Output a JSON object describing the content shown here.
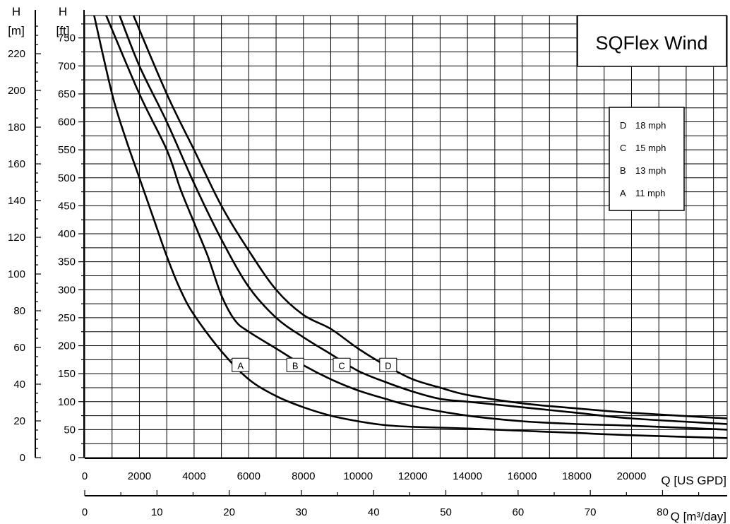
{
  "chart_data": {
    "type": "line",
    "title": "SQFlex Wind",
    "x_unit_label": "Q [US GPD]",
    "x2_unit_label": "Q [m³/day]",
    "y_left_label": {
      "line1": "H",
      "line2": "[m]"
    },
    "y_right_label": {
      "line1": "H",
      "line2": "[ft]"
    },
    "xlim": [
      0,
      23500
    ],
    "ylim": [
      0,
      790
    ],
    "x_ticks": [
      {
        "value": 0,
        "label": "0"
      },
      {
        "value": 2000,
        "label": "2000"
      },
      {
        "value": 4000,
        "label": "4000"
      },
      {
        "value": 6000,
        "label": "6000"
      },
      {
        "value": 8000,
        "label": "8000"
      },
      {
        "value": 10000,
        "label": "10000"
      },
      {
        "value": 12000,
        "label": "12000"
      },
      {
        "value": 14000,
        "label": "14000"
      },
      {
        "value": 16000,
        "label": "16000"
      },
      {
        "value": 18000,
        "label": "18000"
      },
      {
        "value": 20000,
        "label": "20000"
      }
    ],
    "x2_ticks": [
      {
        "value": 0,
        "label": "0"
      },
      {
        "value": 10,
        "label": "10"
      },
      {
        "value": 20,
        "label": "20"
      },
      {
        "value": 30,
        "label": "30"
      },
      {
        "value": 40,
        "label": "40"
      },
      {
        "value": 50,
        "label": "50"
      },
      {
        "value": 60,
        "label": "60"
      },
      {
        "value": 70,
        "label": "70"
      },
      {
        "value": 80,
        "label": "80"
      }
    ],
    "y_ft_ticks": [
      {
        "value": 0,
        "label": "0"
      },
      {
        "value": 50,
        "label": "50"
      },
      {
        "value": 100,
        "label": "100"
      },
      {
        "value": 150,
        "label": "150"
      },
      {
        "value": 200,
        "label": "200"
      },
      {
        "value": 250,
        "label": "250"
      },
      {
        "value": 300,
        "label": "300"
      },
      {
        "value": 350,
        "label": "350"
      },
      {
        "value": 400,
        "label": "400"
      },
      {
        "value": 450,
        "label": "450"
      },
      {
        "value": 500,
        "label": "500"
      },
      {
        "value": 550,
        "label": "550"
      },
      {
        "value": 600,
        "label": "600"
      },
      {
        "value": 650,
        "label": "650"
      },
      {
        "value": 700,
        "label": "700"
      },
      {
        "value": 750,
        "label": "750"
      }
    ],
    "y_m_ticks": [
      {
        "value": 0,
        "label": "0"
      },
      {
        "value": 20,
        "label": "20"
      },
      {
        "value": 40,
        "label": "40"
      },
      {
        "value": 60,
        "label": "60"
      },
      {
        "value": 80,
        "label": "80"
      },
      {
        "value": 100,
        "label": "100"
      },
      {
        "value": 120,
        "label": "120"
      },
      {
        "value": 140,
        "label": "140"
      },
      {
        "value": 160,
        "label": "160"
      },
      {
        "value": 180,
        "label": "180"
      },
      {
        "value": 200,
        "label": "200"
      },
      {
        "value": 220,
        "label": "220"
      }
    ],
    "grid": true,
    "legend_position": "top-right",
    "legend": [
      {
        "key": "D",
        "label": "18 mph"
      },
      {
        "key": "C",
        "label": "15 mph"
      },
      {
        "key": "B",
        "label": "13 mph"
      },
      {
        "key": "A",
        "label": "11 mph"
      }
    ],
    "series": [
      {
        "name": "A",
        "label_at": {
          "x": 5700,
          "y": 165
        },
        "points": [
          [
            300,
            800
          ],
          [
            1000,
            650
          ],
          [
            1500,
            570
          ],
          [
            2000,
            500
          ],
          [
            2500,
            430
          ],
          [
            3000,
            360
          ],
          [
            3500,
            300
          ],
          [
            4000,
            255
          ],
          [
            5000,
            190
          ],
          [
            6000,
            140
          ],
          [
            7000,
            110
          ],
          [
            8000,
            90
          ],
          [
            9000,
            75
          ],
          [
            10000,
            65
          ],
          [
            11000,
            58
          ],
          [
            12000,
            55
          ],
          [
            14000,
            52
          ],
          [
            16000,
            48
          ],
          [
            18000,
            44
          ],
          [
            20000,
            40
          ],
          [
            23500,
            35
          ]
        ]
      },
      {
        "name": "B",
        "label_at": {
          "x": 7700,
          "y": 165
        },
        "points": [
          [
            700,
            800
          ],
          [
            2000,
            650
          ],
          [
            3000,
            550
          ],
          [
            3500,
            480
          ],
          [
            4000,
            420
          ],
          [
            4500,
            360
          ],
          [
            5000,
            290
          ],
          [
            5500,
            245
          ],
          [
            6000,
            225
          ],
          [
            7000,
            195
          ],
          [
            8000,
            165
          ],
          [
            9000,
            140
          ],
          [
            10000,
            120
          ],
          [
            11000,
            105
          ],
          [
            12000,
            92
          ],
          [
            14000,
            75
          ],
          [
            16000,
            65
          ],
          [
            18000,
            60
          ],
          [
            20000,
            57
          ],
          [
            23500,
            50
          ]
        ]
      },
      {
        "name": "C",
        "label_at": {
          "x": 9400,
          "y": 165
        },
        "points": [
          [
            1200,
            800
          ],
          [
            2000,
            700
          ],
          [
            3000,
            600
          ],
          [
            4000,
            490
          ],
          [
            5000,
            390
          ],
          [
            6000,
            305
          ],
          [
            7000,
            250
          ],
          [
            8000,
            215
          ],
          [
            9000,
            185
          ],
          [
            10000,
            155
          ],
          [
            11000,
            135
          ],
          [
            12000,
            118
          ],
          [
            13000,
            105
          ],
          [
            14000,
            100
          ],
          [
            16000,
            90
          ],
          [
            18000,
            80
          ],
          [
            20000,
            70
          ],
          [
            23500,
            60
          ]
        ]
      },
      {
        "name": "D",
        "label_at": {
          "x": 11100,
          "y": 165
        },
        "points": [
          [
            1700,
            800
          ],
          [
            3000,
            650
          ],
          [
            4000,
            550
          ],
          [
            5000,
            450
          ],
          [
            6000,
            370
          ],
          [
            7000,
            300
          ],
          [
            8000,
            255
          ],
          [
            9000,
            230
          ],
          [
            10000,
            195
          ],
          [
            11000,
            165
          ],
          [
            12000,
            140
          ],
          [
            13000,
            125
          ],
          [
            14000,
            112
          ],
          [
            16000,
            97
          ],
          [
            18000,
            88
          ],
          [
            20000,
            80
          ],
          [
            23500,
            70
          ]
        ]
      }
    ]
  }
}
